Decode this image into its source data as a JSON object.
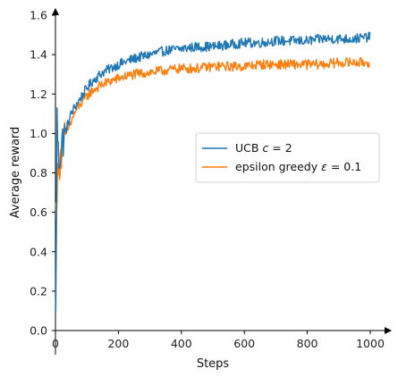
{
  "chart_data": {
    "type": "line",
    "xlabel": "Steps",
    "ylabel": "Average reward",
    "xlim": [
      0,
      1000
    ],
    "ylim": [
      0.0,
      1.6
    ],
    "x_ticks": [
      "0",
      "200",
      "400",
      "600",
      "800",
      "1000"
    ],
    "y_ticks": [
      "0.0",
      "0.2",
      "0.4",
      "0.6",
      "0.8",
      "1.0",
      "1.2",
      "1.4",
      "1.6"
    ],
    "grid": false,
    "legend_position": "center-right",
    "series": [
      {
        "name": "UCB c = 2",
        "legend_parts": [
          "UCB ",
          "c",
          " = 2"
        ],
        "color": "#1f77b4",
        "x": [
          1,
          5,
          10,
          15,
          20,
          30,
          40,
          50,
          60,
          80,
          100,
          120,
          150,
          200,
          250,
          300,
          350,
          400,
          450,
          500,
          550,
          600,
          650,
          700,
          750,
          800,
          850,
          900,
          950,
          1000
        ],
        "y": [
          0.05,
          1.08,
          0.85,
          0.9,
          0.95,
          1.0,
          1.05,
          1.1,
          1.13,
          1.18,
          1.23,
          1.27,
          1.31,
          1.35,
          1.38,
          1.4,
          1.42,
          1.43,
          1.44,
          1.44,
          1.45,
          1.46,
          1.46,
          1.47,
          1.47,
          1.47,
          1.48,
          1.48,
          1.48,
          1.49
        ],
        "noise": 0.025
      },
      {
        "name": "epsilon greedy ε = 0.1",
        "legend_parts": [
          "epsilon greedy ",
          "ε",
          " = 0.1"
        ],
        "color": "#ff7f0e",
        "x": [
          1,
          5,
          10,
          15,
          20,
          30,
          40,
          50,
          60,
          80,
          100,
          120,
          150,
          200,
          250,
          300,
          350,
          400,
          450,
          500,
          550,
          600,
          650,
          700,
          750,
          800,
          850,
          900,
          950,
          1000
        ],
        "y": [
          0.6,
          0.72,
          0.82,
          0.88,
          0.92,
          0.98,
          1.02,
          1.06,
          1.1,
          1.15,
          1.19,
          1.22,
          1.25,
          1.28,
          1.3,
          1.31,
          1.32,
          1.33,
          1.33,
          1.34,
          1.34,
          1.34,
          1.35,
          1.35,
          1.35,
          1.35,
          1.35,
          1.36,
          1.36,
          1.36
        ],
        "noise": 0.025
      }
    ]
  }
}
